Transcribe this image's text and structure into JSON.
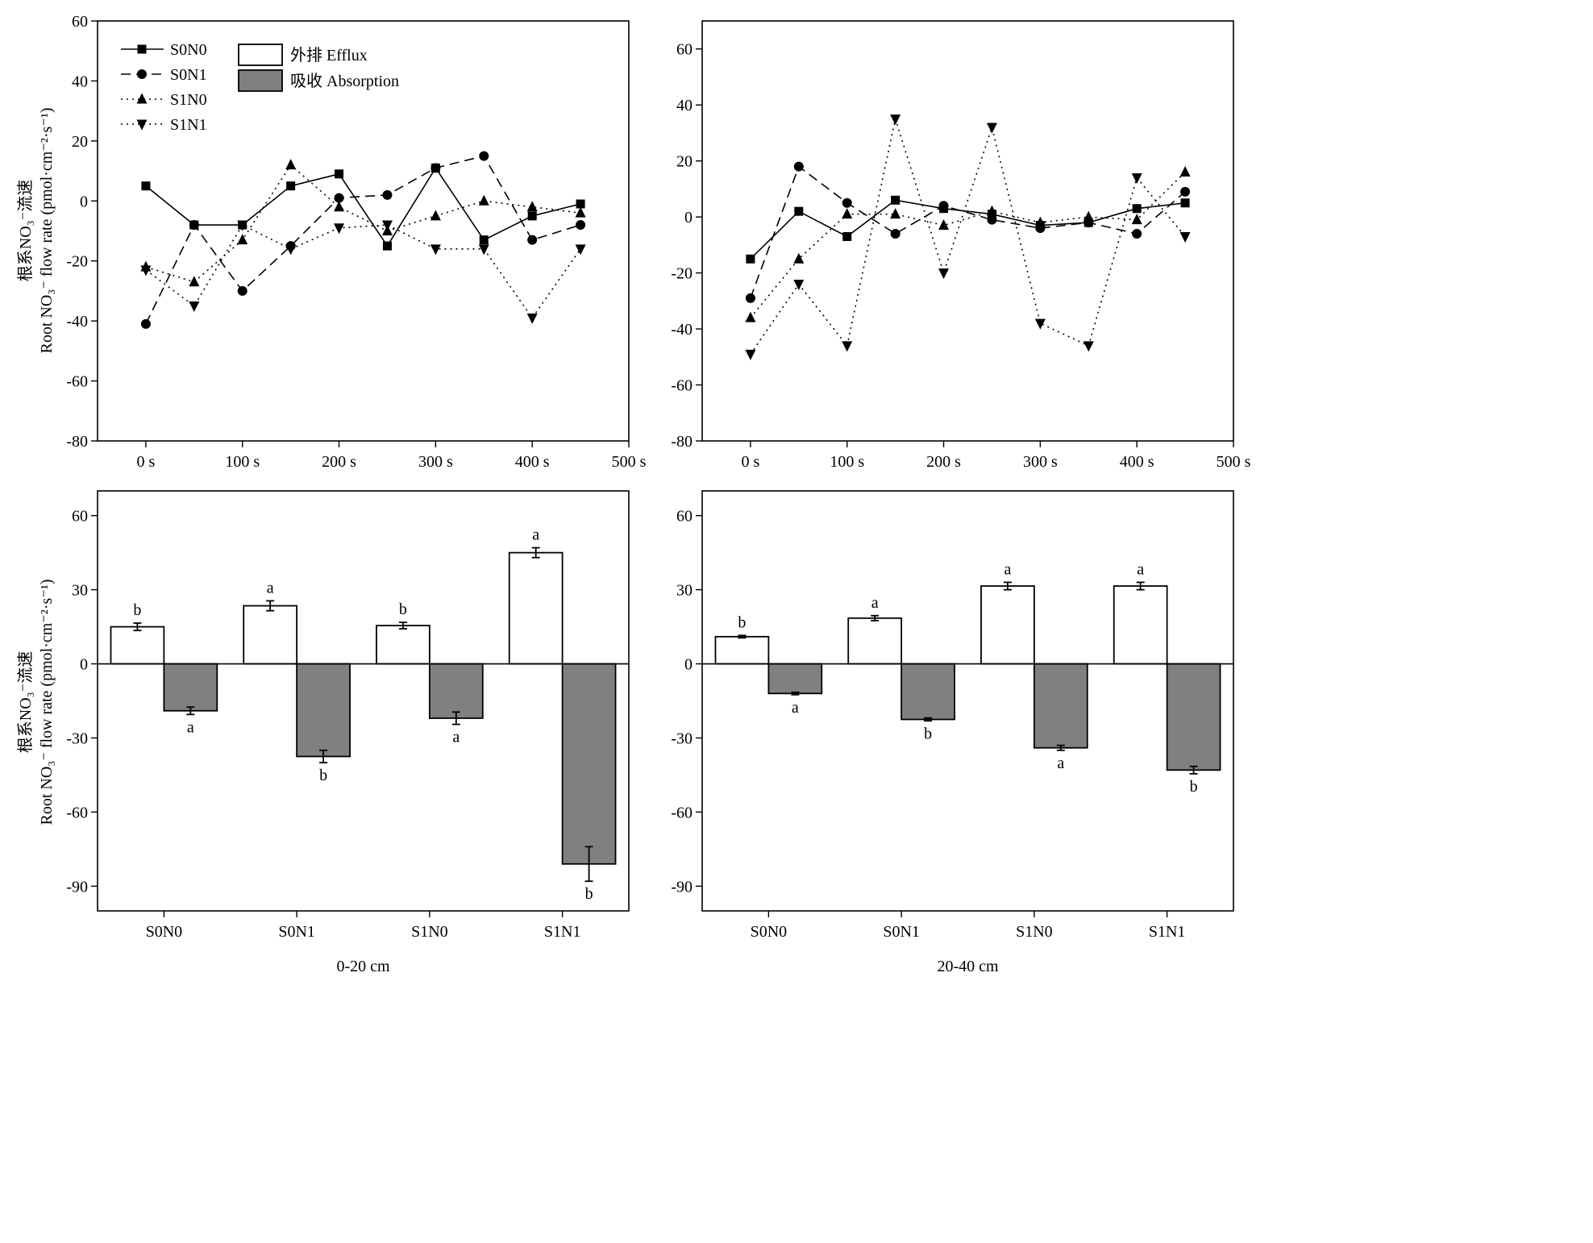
{
  "legend": {
    "lines": [
      {
        "name": "S0N0",
        "marker": "square",
        "dash": "solid"
      },
      {
        "name": "S0N1",
        "marker": "circle",
        "dash": "dashed"
      },
      {
        "name": "S1N0",
        "marker": "triangle-up",
        "dash": "dotted"
      },
      {
        "name": "S1N1",
        "marker": "triangle-down",
        "dash": "dotted"
      }
    ],
    "bars": [
      {
        "name": "外排 Efflux",
        "color": "#ffffff"
      },
      {
        "name": "吸收 Absorption",
        "color": "#808080"
      }
    ]
  },
  "ylabel_top": {
    "line1": "根系NO₃⁻流速",
    "line2": "Root NO₃⁻ flow rate (pmol·cm⁻²·s⁻¹)"
  },
  "ylabel_bottom": {
    "line1": "根系NO₃⁻流速",
    "line2": "Root NO₃⁻ flow rate (pmol·cm⁻²·s⁻¹)"
  },
  "colors": {
    "efflux": "#ffffff",
    "absorption": "#808080",
    "stroke": "#000000"
  },
  "chart_data": [
    {
      "type": "line",
      "panel": "top-left",
      "x": [
        0,
        50,
        100,
        150,
        200,
        250,
        300,
        350,
        400,
        450
      ],
      "xticks": [
        "0 s",
        "100 s",
        "200 s",
        "300 s",
        "400 s",
        "500 s"
      ],
      "xtick_values": [
        0,
        100,
        200,
        300,
        400,
        500
      ],
      "xlim": [
        -50,
        500
      ],
      "ylim": [
        -80,
        60
      ],
      "yticks": [
        -80,
        -60,
        -40,
        -20,
        0,
        20,
        40,
        60
      ],
      "series": [
        {
          "name": "S0N0",
          "values": [
            5,
            -8,
            -8,
            5,
            9,
            -15,
            11,
            -13,
            -5,
            -1
          ]
        },
        {
          "name": "S0N1",
          "values": [
            -41,
            -8,
            -30,
            -15,
            1,
            2,
            11,
            15,
            -13,
            -8
          ]
        },
        {
          "name": "S1N0",
          "values": [
            -22,
            -27,
            -13,
            12,
            -2,
            -10,
            -5,
            0,
            -2,
            -4
          ]
        },
        {
          "name": "S1N1",
          "values": [
            -23,
            -35,
            -8,
            -16,
            -9,
            -8,
            -16,
            -16,
            -39,
            -16
          ]
        }
      ]
    },
    {
      "type": "line",
      "panel": "top-right",
      "x": [
        0,
        50,
        100,
        150,
        200,
        250,
        300,
        350,
        400,
        450
      ],
      "xticks": [
        "0 s",
        "100 s",
        "200 s",
        "300 s",
        "400 s",
        "500 s"
      ],
      "xtick_values": [
        0,
        100,
        200,
        300,
        400,
        500
      ],
      "xlim": [
        -50,
        500
      ],
      "ylim": [
        -80,
        70
      ],
      "yticks": [
        -80,
        -60,
        -40,
        -20,
        0,
        20,
        40,
        60
      ],
      "series": [
        {
          "name": "S0N0",
          "values": [
            -15,
            2,
            -7,
            6,
            3,
            1,
            -3,
            -2,
            3,
            5
          ]
        },
        {
          "name": "S0N1",
          "values": [
            -29,
            18,
            5,
            -6,
            4,
            -1,
            -4,
            -2,
            -6,
            9
          ]
        },
        {
          "name": "S1N0",
          "values": [
            -36,
            -15,
            1,
            1,
            -3,
            2,
            -2,
            0,
            -1,
            16
          ]
        },
        {
          "name": "S1N1",
          "values": [
            -49,
            -24,
            -46,
            35,
            -20,
            32,
            -38,
            -46,
            14,
            -7
          ]
        }
      ]
    },
    {
      "type": "bar",
      "panel": "bottom-left",
      "xlabel": "0-20 cm",
      "categories": [
        "S0N0",
        "S0N1",
        "S1N0",
        "S1N1"
      ],
      "ylim": [
        -100,
        70
      ],
      "yticks": [
        -90,
        -60,
        -30,
        0,
        30,
        60
      ],
      "series": [
        {
          "name": "外排 Efflux",
          "values": [
            15,
            23.5,
            15.5,
            45
          ],
          "errors": [
            1.5,
            2,
            1.3,
            2
          ],
          "labels": [
            "b",
            "a",
            "b",
            "a"
          ]
        },
        {
          "name": "吸收 Absorption",
          "values": [
            -19,
            -37.5,
            -22,
            -81
          ],
          "errors": [
            1.5,
            2.5,
            2.5,
            7
          ],
          "labels": [
            "a",
            "b",
            "a",
            "b"
          ]
        }
      ]
    },
    {
      "type": "bar",
      "panel": "bottom-right",
      "xlabel": "20-40 cm",
      "categories": [
        "S0N0",
        "S0N1",
        "S1N0",
        "S1N1"
      ],
      "ylim": [
        -100,
        70
      ],
      "yticks": [
        -90,
        -60,
        -30,
        0,
        30,
        60
      ],
      "series": [
        {
          "name": "外排 Efflux",
          "values": [
            11,
            18.5,
            31.5,
            31.5
          ],
          "errors": [
            0.5,
            1,
            1.5,
            1.5
          ],
          "labels": [
            "b",
            "a",
            "a",
            "a"
          ]
        },
        {
          "name": "吸收 Absorption",
          "values": [
            -12,
            -22.5,
            -34,
            -43
          ],
          "errors": [
            0.5,
            0.6,
            1,
            1.5
          ],
          "labels": [
            "a",
            "b",
            "a",
            "b"
          ]
        }
      ]
    }
  ]
}
